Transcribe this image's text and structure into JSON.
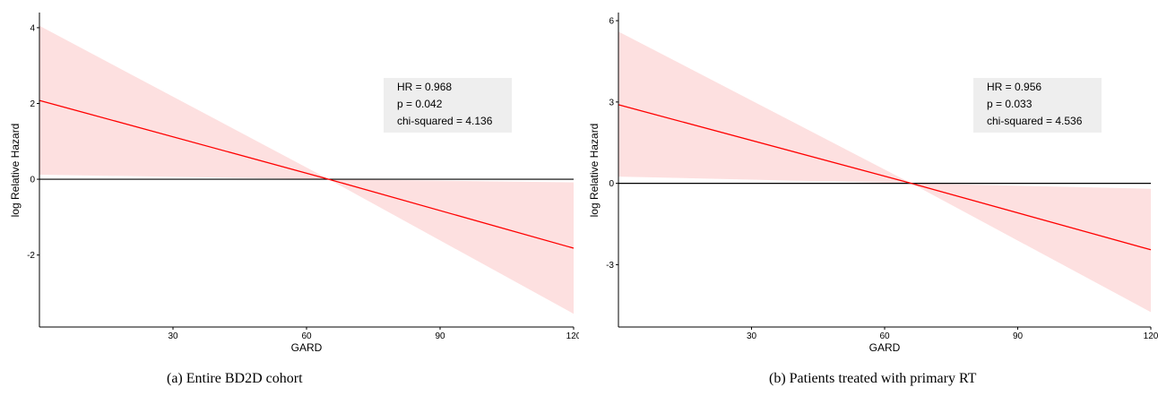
{
  "chart_data": [
    {
      "type": "line",
      "xlabel": "GARD",
      "ylabel": "log Relative Hazard",
      "xlim": [
        0,
        120
      ],
      "ylim": [
        -3.9,
        4.4
      ],
      "xticks": [
        30,
        60,
        90,
        120
      ],
      "xtick_labels": [
        "30",
        "60",
        "90",
        "120"
      ],
      "yticks": [
        4,
        2,
        0,
        -2
      ],
      "ytick_labels": [
        "4",
        "2",
        "0",
        "-2"
      ],
      "reference_line_y": 0,
      "series": [
        {
          "x": [
            0,
            65,
            120
          ],
          "y": [
            2.08,
            0,
            -1.82
          ],
          "ci_lower": [
            0.12,
            0,
            -3.55
          ],
          "ci_upper": [
            4.05,
            0,
            -0.08
          ],
          "color": "#ff0000",
          "band_color": "#fde0e0"
        }
      ],
      "annotation": {
        "lines": [
          "HR = 0.968",
          "p = 0.042",
          "chi-squared = 4.136"
        ],
        "placement": "upper-right",
        "background": "#eeeeee"
      },
      "caption": "(a)  Entire BD2D cohort",
      "grid": false
    },
    {
      "type": "line",
      "xlabel": "GARD",
      "ylabel": "log Relative Hazard",
      "xlim": [
        0,
        120
      ],
      "ylim": [
        -5.3,
        6.3
      ],
      "xticks": [
        30,
        60,
        90,
        120
      ],
      "xtick_labels": [
        "30",
        "60",
        "90",
        "120"
      ],
      "yticks": [
        6,
        3,
        0,
        -3
      ],
      "ytick_labels": [
        "6",
        "3",
        "0",
        "-3"
      ],
      "reference_line_y": 0,
      "series": [
        {
          "x": [
            0,
            66,
            120
          ],
          "y": [
            2.9,
            0,
            -2.45
          ],
          "ci_lower": [
            0.25,
            0,
            -4.75
          ],
          "ci_upper": [
            5.6,
            0,
            -0.2
          ],
          "color": "#ff0000",
          "band_color": "#fde0e0"
        }
      ],
      "annotation": {
        "lines": [
          "HR = 0.956",
          "p = 0.033",
          "chi-squared = 4.536"
        ],
        "placement": "upper-right",
        "background": "#eeeeee"
      },
      "caption": "(b)  Patients treated with primary RT",
      "grid": false
    }
  ]
}
